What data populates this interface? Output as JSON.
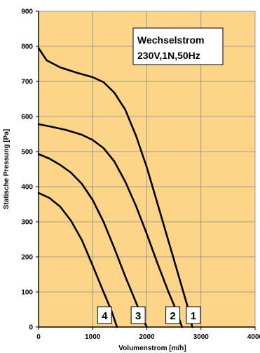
{
  "chart_data": {
    "type": "line",
    "title": "",
    "annotation_lines": [
      "Wechselstrom",
      "230V,1N,50Hz"
    ],
    "xlabel": "Volumenstrom [m/h]",
    "ylabel": "Statische Pressung [Pa]",
    "xlim": [
      0,
      4000
    ],
    "ylim": [
      0,
      900
    ],
    "xticks": [
      0,
      1000,
      2000,
      3000,
      4000
    ],
    "yticks": [
      0,
      100,
      200,
      300,
      400,
      500,
      600,
      700,
      800,
      900
    ],
    "grid": true,
    "background_color": "#fcd588",
    "grid_color": "#8a8a8a",
    "line_color": "#000000",
    "series": [
      {
        "label": "1",
        "label_at_x": 2860,
        "points": [
          [
            0,
            795
          ],
          [
            150,
            760
          ],
          [
            400,
            740
          ],
          [
            700,
            725
          ],
          [
            1000,
            712
          ],
          [
            1200,
            698
          ],
          [
            1400,
            668
          ],
          [
            1600,
            620
          ],
          [
            1800,
            545
          ],
          [
            2000,
            455
          ],
          [
            2200,
            350
          ],
          [
            2400,
            245
          ],
          [
            2600,
            140
          ],
          [
            2750,
            60
          ],
          [
            2840,
            0
          ]
        ]
      },
      {
        "label": "2",
        "label_at_x": 2480,
        "points": [
          [
            0,
            578
          ],
          [
            200,
            572
          ],
          [
            500,
            562
          ],
          [
            800,
            548
          ],
          [
            1000,
            533
          ],
          [
            1200,
            510
          ],
          [
            1400,
            472
          ],
          [
            1600,
            415
          ],
          [
            1800,
            345
          ],
          [
            2000,
            265
          ],
          [
            2200,
            180
          ],
          [
            2400,
            100
          ],
          [
            2550,
            45
          ],
          [
            2650,
            0
          ]
        ]
      },
      {
        "label": "3",
        "label_at_x": 1840,
        "points": [
          [
            0,
            493
          ],
          [
            200,
            480
          ],
          [
            400,
            462
          ],
          [
            600,
            440
          ],
          [
            800,
            408
          ],
          [
            1000,
            362
          ],
          [
            1200,
            300
          ],
          [
            1400,
            225
          ],
          [
            1600,
            145
          ],
          [
            1800,
            70
          ],
          [
            1950,
            15
          ],
          [
            2000,
            0
          ]
        ]
      },
      {
        "label": "4",
        "label_at_x": 1220,
        "points": [
          [
            0,
            382
          ],
          [
            200,
            368
          ],
          [
            400,
            343
          ],
          [
            600,
            303
          ],
          [
            800,
            248
          ],
          [
            1000,
            175
          ],
          [
            1200,
            100
          ],
          [
            1350,
            45
          ],
          [
            1450,
            0
          ]
        ]
      }
    ]
  }
}
